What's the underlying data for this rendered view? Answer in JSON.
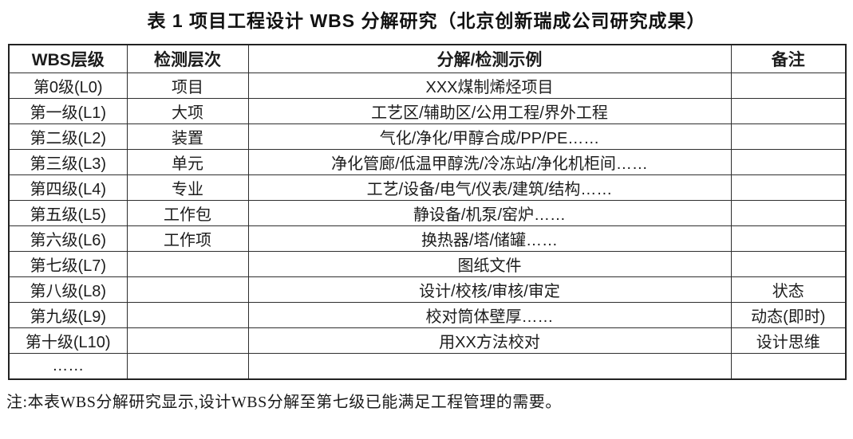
{
  "title": "表 1  项目工程设计 WBS 分解研究（北京创新瑞成公司研究成果）",
  "colors": {
    "background": "#ffffff",
    "text": "#1a1a1a",
    "border": "#2e2e2e"
  },
  "table": {
    "headers": [
      "WBS层级",
      "检测层次",
      "分解/检测示例",
      "备注"
    ],
    "rows": [
      [
        "第0级(L0)",
        "项目",
        "XXX煤制烯烃项目",
        ""
      ],
      [
        "第一级(L1)",
        "大项",
        "工艺区/辅助区/公用工程/界外工程",
        ""
      ],
      [
        "第二级(L2)",
        "装置",
        "气化/净化/甲醇合成/PP/PE……",
        ""
      ],
      [
        "第三级(L3)",
        "单元",
        "净化管廊/低温甲醇洗/冷冻站/净化机柜间……",
        ""
      ],
      [
        "第四级(L4)",
        "专业",
        "工艺/设备/电气/仪表/建筑/结构……",
        ""
      ],
      [
        "第五级(L5)",
        "工作包",
        "静设备/机泵/窑炉……",
        ""
      ],
      [
        "第六级(L6)",
        "工作项",
        "换热器/塔/储罐……",
        ""
      ],
      [
        "第七级(L7)",
        "",
        "图纸文件",
        ""
      ],
      [
        "第八级(L8)",
        "",
        "设计/校核/审核/审定",
        "状态"
      ],
      [
        "第九级(L9)",
        "",
        "校对筒体壁厚……",
        "动态(即时)"
      ],
      [
        "第十级(L10)",
        "",
        "用XX方法校对",
        "设计思维"
      ],
      [
        "……",
        "",
        "",
        ""
      ]
    ]
  },
  "note": "注:本表WBS分解研究显示,设计WBS分解至第七级已能满足工程管理的需要。"
}
